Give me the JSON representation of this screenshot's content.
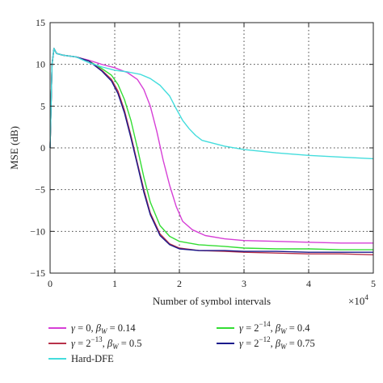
{
  "chart_data": {
    "type": "line",
    "xlabel": "Number of symbol intervals",
    "x_multiplier_label": "×10",
    "x_multiplier_exp": "4",
    "ylabel": "MSE (dB)",
    "xlim": [
      0,
      5
    ],
    "ylim": [
      -15,
      15
    ],
    "x_ticks": [
      "0",
      "1",
      "2",
      "3",
      "4",
      "5"
    ],
    "y_ticks": [
      "15",
      "10",
      "5",
      "0",
      "−5",
      "−10",
      "−15"
    ],
    "grid": true,
    "legend_position": "bottom",
    "series": [
      {
        "legend": {
          "sym1": "γ",
          "eq1": " = 0, ",
          "sym2": "β",
          "sub": "W",
          "eq2": " = 0.14",
          "sup": ""
        },
        "color": "#d63fd6",
        "points": [
          [
            0,
            0
          ],
          [
            0.03,
            10
          ],
          [
            0.06,
            11.9
          ],
          [
            0.1,
            11.3
          ],
          [
            0.2,
            11.1
          ],
          [
            0.4,
            10.9
          ],
          [
            0.6,
            10.5
          ],
          [
            0.8,
            10
          ],
          [
            1.0,
            9.6
          ],
          [
            1.2,
            9
          ],
          [
            1.35,
            8.2
          ],
          [
            1.45,
            7
          ],
          [
            1.55,
            5
          ],
          [
            1.65,
            2
          ],
          [
            1.75,
            -1.5
          ],
          [
            1.85,
            -4.5
          ],
          [
            1.95,
            -7
          ],
          [
            2.05,
            -8.8
          ],
          [
            2.2,
            -9.8
          ],
          [
            2.4,
            -10.5
          ],
          [
            2.7,
            -10.9
          ],
          [
            3.0,
            -11.1
          ],
          [
            3.5,
            -11.2
          ],
          [
            4.0,
            -11.3
          ],
          [
            4.5,
            -11.4
          ],
          [
            5.0,
            -11.4
          ]
        ]
      },
      {
        "legend": {
          "sym1": "γ",
          "eq1": " = 2",
          "sym2": "β",
          "sub": "W",
          "eq2": " = 0.4",
          "sup": "−14"
        },
        "color": "#33dd33",
        "points": [
          [
            0,
            0
          ],
          [
            0.03,
            10
          ],
          [
            0.06,
            11.9
          ],
          [
            0.1,
            11.3
          ],
          [
            0.2,
            11.1
          ],
          [
            0.4,
            10.9
          ],
          [
            0.6,
            10.4
          ],
          [
            0.8,
            9.5
          ],
          [
            0.95,
            8.7
          ],
          [
            1.05,
            7.6
          ],
          [
            1.15,
            5.8
          ],
          [
            1.25,
            3.3
          ],
          [
            1.35,
            0
          ],
          [
            1.45,
            -3.5
          ],
          [
            1.55,
            -6.5
          ],
          [
            1.7,
            -9.3
          ],
          [
            1.85,
            -10.6
          ],
          [
            2.0,
            -11.2
          ],
          [
            2.3,
            -11.6
          ],
          [
            2.7,
            -11.8
          ],
          [
            3.0,
            -12
          ],
          [
            3.5,
            -12.1
          ],
          [
            4.0,
            -12.1
          ],
          [
            4.5,
            -12.2
          ],
          [
            5.0,
            -12.2
          ]
        ]
      },
      {
        "legend": {
          "sym1": "γ",
          "eq1": " = 2",
          "sym2": "β",
          "sub": "W",
          "eq2": " = 0.5",
          "sup": "−13"
        },
        "color": "#b8324a",
        "points": [
          [
            0,
            0
          ],
          [
            0.03,
            10
          ],
          [
            0.06,
            11.9
          ],
          [
            0.1,
            11.3
          ],
          [
            0.2,
            11.1
          ],
          [
            0.4,
            10.9
          ],
          [
            0.6,
            10.4
          ],
          [
            0.8,
            9.3
          ],
          [
            0.95,
            8.2
          ],
          [
            1.05,
            6.8
          ],
          [
            1.15,
            4.5
          ],
          [
            1.25,
            1.5
          ],
          [
            1.35,
            -1.8
          ],
          [
            1.45,
            -5
          ],
          [
            1.55,
            -7.8
          ],
          [
            1.7,
            -10.3
          ],
          [
            1.85,
            -11.5
          ],
          [
            2.0,
            -12
          ],
          [
            2.3,
            -12.3
          ],
          [
            2.7,
            -12.4
          ],
          [
            3.0,
            -12.5
          ],
          [
            3.5,
            -12.6
          ],
          [
            4.0,
            -12.7
          ],
          [
            4.5,
            -12.7
          ],
          [
            5.0,
            -12.8
          ]
        ]
      },
      {
        "legend": {
          "sym1": "γ",
          "eq1": " = 2",
          "sym2": "β",
          "sub": "W",
          "eq2": " = 0.75",
          "sup": "−12"
        },
        "color": "#1a1a8c",
        "points": [
          [
            0,
            0
          ],
          [
            0.03,
            10
          ],
          [
            0.06,
            11.9
          ],
          [
            0.1,
            11.3
          ],
          [
            0.2,
            11.1
          ],
          [
            0.4,
            10.9
          ],
          [
            0.6,
            10.4
          ],
          [
            0.8,
            9.2
          ],
          [
            0.95,
            8
          ],
          [
            1.05,
            6.5
          ],
          [
            1.15,
            4.2
          ],
          [
            1.25,
            1.2
          ],
          [
            1.35,
            -2
          ],
          [
            1.45,
            -5.3
          ],
          [
            1.55,
            -8
          ],
          [
            1.7,
            -10.5
          ],
          [
            1.85,
            -11.6
          ],
          [
            2.0,
            -12.1
          ],
          [
            2.3,
            -12.3
          ],
          [
            2.7,
            -12.3
          ],
          [
            3.0,
            -12.4
          ],
          [
            3.5,
            -12.4
          ],
          [
            4.0,
            -12.5
          ],
          [
            4.5,
            -12.5
          ],
          [
            5.0,
            -12.5
          ]
        ]
      },
      {
        "legend": {
          "sym1": "",
          "eq1": "Hard-DFE",
          "sym2": "",
          "sub": "",
          "eq2": "",
          "sup": ""
        },
        "color": "#44dddd",
        "points": [
          [
            0,
            0
          ],
          [
            0.03,
            10
          ],
          [
            0.06,
            11.9
          ],
          [
            0.1,
            11.3
          ],
          [
            0.2,
            11.1
          ],
          [
            0.4,
            10.9
          ],
          [
            0.6,
            10.2
          ],
          [
            0.8,
            9.7
          ],
          [
            1.0,
            9.3
          ],
          [
            1.2,
            9.1
          ],
          [
            1.4,
            8.8
          ],
          [
            1.55,
            8.3
          ],
          [
            1.7,
            7.5
          ],
          [
            1.85,
            6.2
          ],
          [
            1.95,
            4.7
          ],
          [
            2.05,
            3.3
          ],
          [
            2.15,
            2.3
          ],
          [
            2.25,
            1.5
          ],
          [
            2.35,
            0.9
          ],
          [
            2.5,
            0.6
          ],
          [
            2.7,
            0.2
          ],
          [
            3.0,
            -0.2
          ],
          [
            3.5,
            -0.6
          ],
          [
            4.0,
            -0.9
          ],
          [
            4.5,
            -1.1
          ],
          [
            5.0,
            -1.3
          ]
        ]
      }
    ]
  }
}
